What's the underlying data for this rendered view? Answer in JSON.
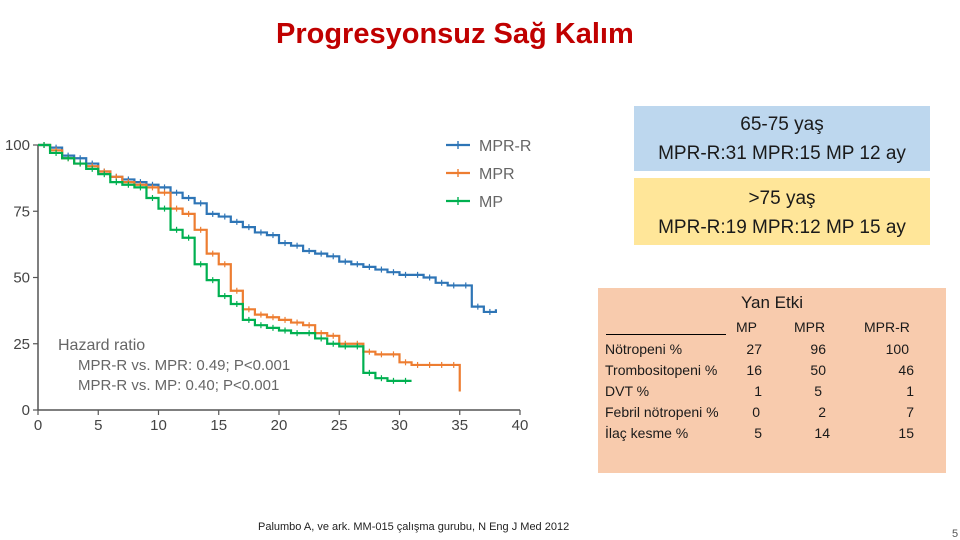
{
  "title": "Progresyonsuz Sağ Kalım",
  "subgroups": [
    {
      "name": "65-75 yaş",
      "line": "MPR-R:31  MPR:15 MP 12 ay",
      "color": "#bdd7ee"
    },
    {
      "name": ">75 yaş",
      "line": "MPR-R:19  MPR:12 MP 15 ay",
      "color": "#ffe699"
    }
  ],
  "adverse_events": {
    "title": "Yan Etki",
    "columns": [
      "MP",
      "MPR",
      "MPR-R"
    ],
    "rows": [
      {
        "label": "Nötropeni %",
        "values": [
          "27",
          "96",
          "100"
        ]
      },
      {
        "label": "Trombositopeni %",
        "values": [
          "16",
          "50",
          "46"
        ]
      },
      {
        "label": "DVT %",
        "values": [
          "1",
          "5",
          "1"
        ]
      },
      {
        "label": "Febril nötropeni %",
        "values": [
          "0",
          "2",
          "7"
        ]
      },
      {
        "label": "İlaç kesme %",
        "values": [
          "5",
          "14",
          "15"
        ]
      }
    ]
  },
  "footnote": "Palumbo A, ve ark. MM-015 çalışma gurubu, N Eng J Med 2012",
  "page_number": "5",
  "chart_data": {
    "type": "line",
    "xlabel": "",
    "ylabel": "",
    "xlim": [
      0,
      40
    ],
    "ylim": [
      0,
      100
    ],
    "x_ticks": [
      "0",
      "5",
      "10",
      "15",
      "20",
      "25",
      "30",
      "35",
      "40"
    ],
    "y_ticks": [
      "0",
      "25",
      "50",
      "75",
      "100"
    ],
    "legend_position": "top-right",
    "annotation": {
      "heading": "Hazard ratio",
      "lines": [
        "MPR-R vs. MPR: 0.49; P<0.001",
        "MPR-R vs. MP:  0.40; P<0.001"
      ]
    },
    "series": [
      {
        "name": "MPR-R",
        "color": "#2e75b6",
        "x": [
          0,
          1,
          2,
          3,
          4,
          5,
          6,
          7,
          8,
          9,
          10,
          11,
          12,
          13,
          14,
          15,
          16,
          17,
          18,
          19,
          20,
          21,
          22,
          23,
          24,
          25,
          26,
          27,
          28,
          29,
          30,
          31,
          32,
          33,
          34,
          35,
          36,
          37,
          38
        ],
        "y": [
          100,
          99,
          96,
          95,
          93,
          90,
          88,
          87,
          86,
          85,
          84,
          82,
          80,
          78,
          74,
          73,
          71,
          69,
          67,
          66,
          63,
          62,
          60,
          59,
          58,
          56,
          55,
          54,
          53,
          52,
          51,
          51,
          50,
          48,
          47,
          47,
          39,
          37,
          38
        ]
      },
      {
        "name": "MPR",
        "color": "#ed7d31",
        "x": [
          0,
          1,
          2,
          3,
          4,
          5,
          6,
          7,
          8,
          9,
          10,
          11,
          12,
          13,
          14,
          15,
          16,
          17,
          18,
          19,
          20,
          21,
          22,
          23,
          24,
          25,
          26,
          27,
          28,
          29,
          30,
          31,
          32,
          33,
          34,
          35
        ],
        "y": [
          100,
          98,
          95,
          93,
          92,
          90,
          88,
          86,
          85,
          84,
          82,
          76,
          74,
          68,
          59,
          55,
          45,
          38,
          36,
          35,
          34,
          33,
          32,
          29,
          28,
          25,
          25,
          22,
          21,
          21,
          18,
          17,
          17,
          17,
          17,
          7
        ]
      },
      {
        "name": "MP",
        "color": "#00b050",
        "x": [
          0,
          1,
          2,
          3,
          4,
          5,
          6,
          7,
          8,
          9,
          10,
          11,
          12,
          13,
          14,
          15,
          16,
          17,
          18,
          19,
          20,
          21,
          22,
          23,
          24,
          25,
          26,
          27,
          28,
          29,
          30,
          31
        ],
        "y": [
          100,
          97,
          95,
          93,
          91,
          89,
          86,
          85,
          84,
          80,
          76,
          68,
          65,
          55,
          49,
          43,
          40,
          34,
          32,
          31,
          30,
          29,
          29,
          27,
          25,
          24,
          24,
          14,
          12,
          11,
          11,
          11
        ]
      }
    ]
  }
}
